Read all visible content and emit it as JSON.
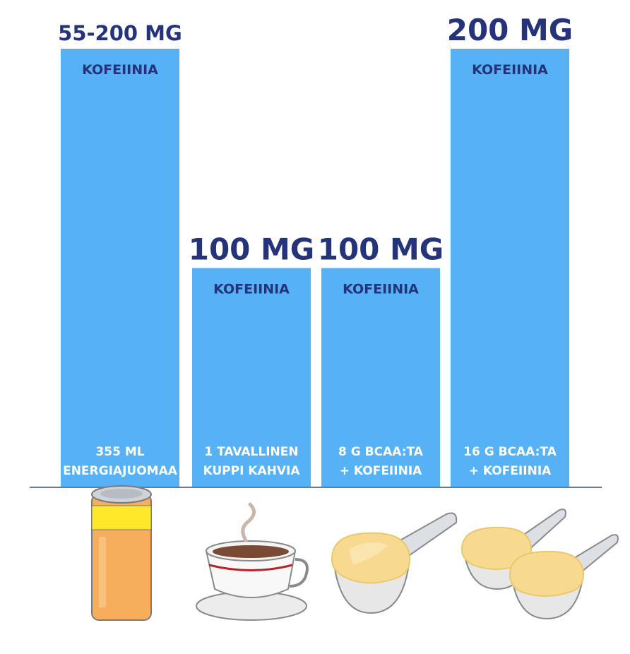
{
  "chart_data": {
    "type": "bar",
    "unit": "MG",
    "series_label": "KOFEIINIA",
    "categories": [
      [
        "355 ML",
        "ENERGIAJUOMAA"
      ],
      [
        "1 TAVALLINEN",
        "KUPPI KAHVIA"
      ],
      [
        "8 G BCAA:TA",
        "+ KOFEIINIA"
      ],
      [
        "16 G BCAA:TA",
        "+ KOFEIINIA"
      ]
    ],
    "values": [
      200,
      100,
      100,
      200
    ],
    "value_labels": [
      "55-200 MG",
      "100 MG",
      "100 MG",
      "200 MG"
    ],
    "ylim": [
      0,
      200
    ],
    "grid": false
  },
  "colors": {
    "bar": "#56b1f5",
    "label": "#24337a",
    "bottom_text": "#ffffff",
    "baseline": "#6f7a8c"
  },
  "icons": [
    "energy-drink-can-icon",
    "coffee-cup-icon",
    "scoop-icon",
    "double-scoop-icon"
  ]
}
